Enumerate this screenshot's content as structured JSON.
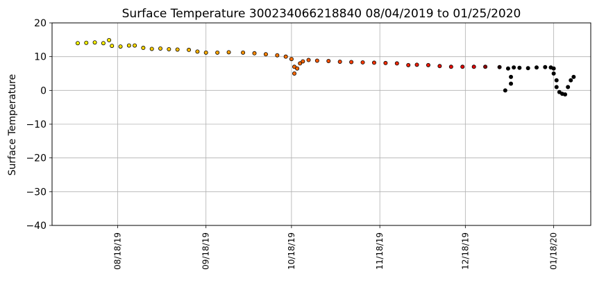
{
  "chart_data": {
    "type": "scatter",
    "title": "Surface Temperature 300234066218840  08/04/2019 to 01/25/2020",
    "xlabel": "",
    "ylabel": "Surface Temperature",
    "x_range": [
      "2019-07-26",
      "2020-01-31"
    ],
    "ylim": [
      -40,
      20
    ],
    "yticks": [
      20,
      10,
      0,
      -10,
      -20,
      -30,
      -40
    ],
    "ytick_labels": [
      "20",
      "10",
      "0",
      "−10",
      "−20",
      "−30",
      "−40"
    ],
    "xticks": [
      "2019-08-18",
      "2019-09-18",
      "2019-10-18",
      "2019-11-18",
      "2019-12-18",
      "2020-01-18"
    ],
    "xtick_labels": [
      "08/18/19",
      "09/18/19",
      "10/18/19",
      "11/18/19",
      "12/18/19",
      "01/18/20"
    ],
    "grid": true,
    "color_gradient": [
      "#ffff00",
      "#ffa000",
      "#ff4000",
      "#e00000",
      "#000000"
    ],
    "points": [
      [
        "2019-08-04",
        14.0
      ],
      [
        "2019-08-07",
        14.1
      ],
      [
        "2019-08-10",
        14.2
      ],
      [
        "2019-08-13",
        14.0
      ],
      [
        "2019-08-15",
        14.9
      ],
      [
        "2019-08-16",
        13.2
      ],
      [
        "2019-08-19",
        13.0
      ],
      [
        "2019-08-22",
        13.3
      ],
      [
        "2019-08-24",
        13.3
      ],
      [
        "2019-08-27",
        12.6
      ],
      [
        "2019-08-30",
        12.3
      ],
      [
        "2019-09-02",
        12.4
      ],
      [
        "2019-09-05",
        12.2
      ],
      [
        "2019-09-08",
        12.1
      ],
      [
        "2019-09-12",
        12.0
      ],
      [
        "2019-09-15",
        11.5
      ],
      [
        "2019-09-18",
        11.2
      ],
      [
        "2019-09-22",
        11.2
      ],
      [
        "2019-09-26",
        11.3
      ],
      [
        "2019-10-01",
        11.2
      ],
      [
        "2019-10-05",
        11.0
      ],
      [
        "2019-10-09",
        10.7
      ],
      [
        "2019-10-13",
        10.4
      ],
      [
        "2019-10-16",
        10.0
      ],
      [
        "2019-10-18",
        9.3
      ],
      [
        "2019-10-19",
        7.0
      ],
      [
        "2019-10-19",
        5.0
      ],
      [
        "2019-10-20",
        6.5
      ],
      [
        "2019-10-21",
        8.0
      ],
      [
        "2019-10-22",
        8.6
      ],
      [
        "2019-10-24",
        9.0
      ],
      [
        "2019-10-27",
        8.8
      ],
      [
        "2019-10-31",
        8.7
      ],
      [
        "2019-11-04",
        8.5
      ],
      [
        "2019-11-08",
        8.4
      ],
      [
        "2019-11-12",
        8.3
      ],
      [
        "2019-11-16",
        8.2
      ],
      [
        "2019-11-20",
        8.1
      ],
      [
        "2019-11-24",
        8.0
      ],
      [
        "2019-11-28",
        7.5
      ],
      [
        "2019-12-01",
        7.6
      ],
      [
        "2019-12-05",
        7.5
      ],
      [
        "2019-12-09",
        7.2
      ],
      [
        "2019-12-13",
        7.0
      ],
      [
        "2019-12-17",
        7.0
      ],
      [
        "2019-12-21",
        7.0
      ],
      [
        "2019-12-25",
        7.0
      ],
      [
        "2019-12-30",
        6.9
      ],
      [
        "2020-01-01",
        0.0
      ],
      [
        "2020-01-02",
        6.5
      ],
      [
        "2020-01-03",
        2.0
      ],
      [
        "2020-01-03",
        4.0
      ],
      [
        "2020-01-04",
        6.8
      ],
      [
        "2020-01-06",
        6.7
      ],
      [
        "2020-01-09",
        6.6
      ],
      [
        "2020-01-12",
        6.8
      ],
      [
        "2020-01-15",
        6.9
      ],
      [
        "2020-01-17",
        6.8
      ],
      [
        "2020-01-18",
        6.5
      ],
      [
        "2020-01-18",
        5.0
      ],
      [
        "2020-01-19",
        3.0
      ],
      [
        "2020-01-19",
        1.0
      ],
      [
        "2020-01-20",
        -0.5
      ],
      [
        "2020-01-21",
        -1.0
      ],
      [
        "2020-01-22",
        -1.2
      ],
      [
        "2020-01-23",
        1.0
      ],
      [
        "2020-01-24",
        3.0
      ],
      [
        "2020-01-25",
        4.0
      ]
    ]
  }
}
